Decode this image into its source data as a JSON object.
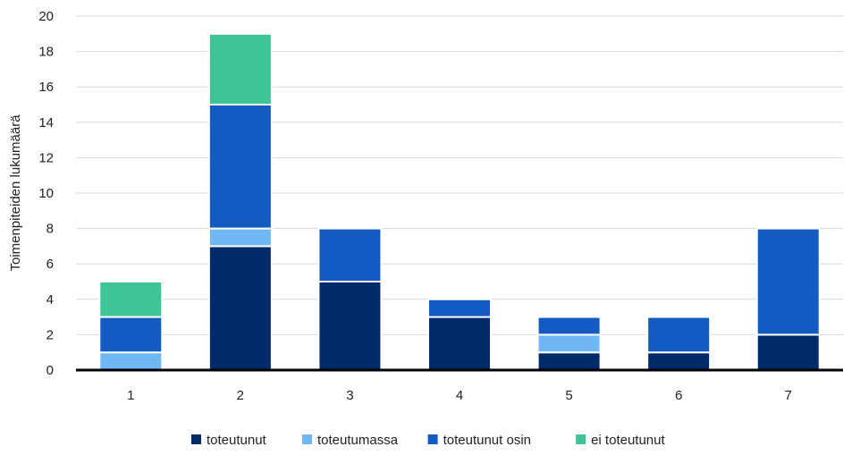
{
  "chart_data": {
    "type": "bar",
    "stacked": true,
    "categories": [
      "1",
      "2",
      "3",
      "4",
      "5",
      "6",
      "7"
    ],
    "series": [
      {
        "name": "toteutunut",
        "values": [
          0,
          7,
          5,
          3,
          1,
          1,
          2
        ],
        "color": "#012a6a"
      },
      {
        "name": "toteutumassa",
        "values": [
          1,
          1,
          0,
          0,
          1,
          0,
          0
        ],
        "color": "#6fb8f5"
      },
      {
        "name": "toteutunut osin",
        "values": [
          2,
          7,
          3,
          1,
          1,
          2,
          6
        ],
        "color": "#135bc2"
      },
      {
        "name": "ei toteutunut",
        "values": [
          2,
          4,
          0,
          0,
          0,
          0,
          0
        ],
        "color": "#3ec496"
      }
    ],
    "ylabel": "Toimenpiteiden lukumäärä",
    "ylim": [
      0,
      20
    ],
    "yticks": [
      "0",
      "2",
      "4",
      "6",
      "8",
      "10",
      "12",
      "14",
      "16",
      "18",
      "20"
    ],
    "grid": true,
    "legend_position": "bottom"
  }
}
